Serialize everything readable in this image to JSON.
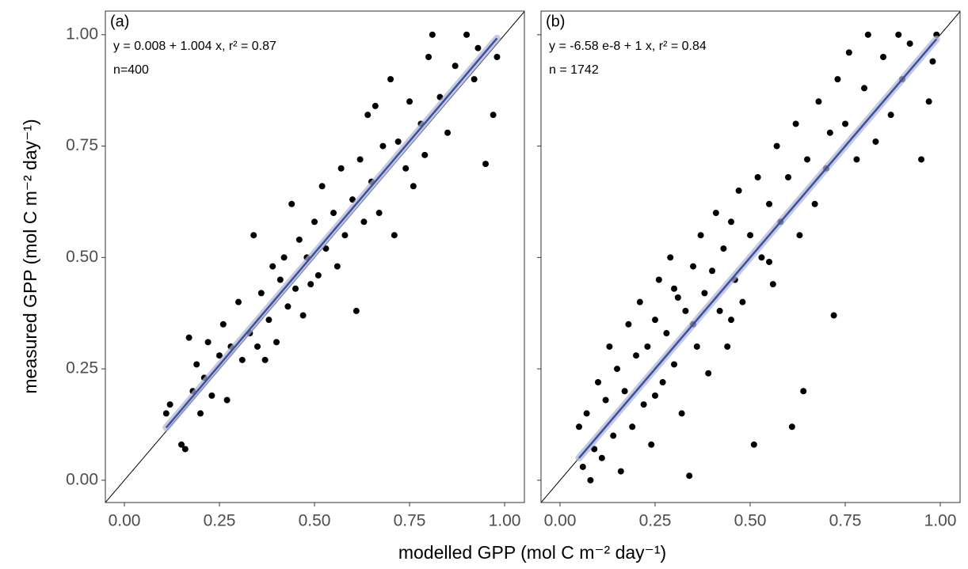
{
  "chart_data": [
    {
      "type": "scatter",
      "xlabel": "modelled GPP (mol C m⁻² day⁻¹)",
      "ylabel": "measured GPP (mol C m⁻² day⁻¹)",
      "annotations": [
        "(a)",
        "y = 0.008 + 1.004 x, r² = 0.87",
        "n=400"
      ],
      "color": "#000000",
      "identity_line": true,
      "ytick_labels": true,
      "x": [
        0.11,
        0.12,
        0.15,
        0.16,
        0.17,
        0.18,
        0.19,
        0.2,
        0.21,
        0.22,
        0.23,
        0.25,
        0.26,
        0.27,
        0.28,
        0.3,
        0.31,
        0.33,
        0.34,
        0.35,
        0.36,
        0.38,
        0.39,
        0.4,
        0.41,
        0.42,
        0.43,
        0.44,
        0.45,
        0.46,
        0.47,
        0.48,
        0.5,
        0.51,
        0.52,
        0.53,
        0.55,
        0.56,
        0.57,
        0.58,
        0.6,
        0.61,
        0.62,
        0.63,
        0.64,
        0.65,
        0.67,
        0.68,
        0.7,
        0.71,
        0.72,
        0.74,
        0.75,
        0.76,
        0.78,
        0.8,
        0.81,
        0.83,
        0.85,
        0.87,
        0.9,
        0.92,
        0.95,
        0.97,
        0.98,
        0.93,
        0.79,
        0.66,
        0.37,
        0.49
      ],
      "y": [
        0.15,
        0.17,
        0.08,
        0.07,
        0.32,
        0.2,
        0.26,
        0.15,
        0.23,
        0.31,
        0.19,
        0.28,
        0.35,
        0.18,
        0.3,
        0.4,
        0.27,
        0.33,
        0.55,
        0.3,
        0.42,
        0.36,
        0.48,
        0.31,
        0.45,
        0.5,
        0.39,
        0.62,
        0.43,
        0.54,
        0.37,
        0.5,
        0.58,
        0.46,
        0.66,
        0.52,
        0.6,
        0.48,
        0.7,
        0.55,
        0.63,
        0.38,
        0.72,
        0.58,
        0.82,
        0.67,
        0.6,
        0.75,
        0.9,
        0.55,
        0.76,
        0.7,
        0.85,
        0.66,
        0.8,
        0.95,
        1.0,
        0.86,
        0.78,
        0.93,
        1.0,
        0.9,
        0.71,
        0.82,
        0.95,
        0.97,
        0.73,
        0.84,
        0.27,
        0.44
      ],
      "fit": {
        "x": [
          0.11,
          0.98
        ],
        "y": [
          0.118,
          0.992
        ],
        "color": "#3d4f9e"
      },
      "xlim": [
        -0.05,
        1.052
      ],
      "ylim": [
        -0.05,
        1.053
      ],
      "xticks": [
        {
          "value": 0,
          "label": "0.00"
        },
        {
          "value": 0.25,
          "label": "0.25"
        },
        {
          "value": 0.5,
          "label": "0.50"
        },
        {
          "value": 0.75,
          "label": "0.75"
        },
        {
          "value": 1,
          "label": "1.00"
        }
      ],
      "yticks": [
        {
          "value": 0,
          "label": "0.00"
        },
        {
          "value": 0.25,
          "label": "0.25"
        },
        {
          "value": 0.5,
          "label": "0.50"
        },
        {
          "value": 0.75,
          "label": "0.75"
        },
        {
          "value": 1,
          "label": "1.00"
        }
      ]
    },
    {
      "type": "scatter",
      "annotations": [
        "(b)",
        "y = -6.58 e-8 + 1 x, r² = 0.84",
        "n = 1742"
      ],
      "color": "#000000",
      "identity_line": true,
      "ytick_labels": false,
      "x": [
        0.05,
        0.06,
        0.07,
        0.08,
        0.09,
        0.1,
        0.11,
        0.12,
        0.13,
        0.14,
        0.15,
        0.16,
        0.17,
        0.18,
        0.19,
        0.2,
        0.21,
        0.22,
        0.23,
        0.24,
        0.25,
        0.26,
        0.27,
        0.28,
        0.29,
        0.3,
        0.31,
        0.32,
        0.33,
        0.34,
        0.35,
        0.36,
        0.37,
        0.38,
        0.39,
        0.4,
        0.41,
        0.42,
        0.43,
        0.44,
        0.45,
        0.46,
        0.47,
        0.48,
        0.5,
        0.51,
        0.52,
        0.53,
        0.55,
        0.56,
        0.57,
        0.58,
        0.6,
        0.61,
        0.62,
        0.63,
        0.64,
        0.65,
        0.67,
        0.68,
        0.7,
        0.71,
        0.72,
        0.73,
        0.75,
        0.76,
        0.78,
        0.8,
        0.81,
        0.83,
        0.85,
        0.87,
        0.89,
        0.9,
        0.92,
        0.95,
        0.97,
        0.99,
        0.98,
        0.3,
        0.45,
        0.55,
        0.25,
        0.35
      ],
      "y": [
        0.12,
        0.03,
        0.15,
        0.0,
        0.07,
        0.22,
        0.05,
        0.18,
        0.3,
        0.1,
        0.25,
        0.02,
        0.2,
        0.35,
        0.12,
        0.28,
        0.4,
        0.17,
        0.3,
        0.08,
        0.36,
        0.45,
        0.22,
        0.33,
        0.5,
        0.26,
        0.41,
        0.15,
        0.38,
        0.01,
        0.48,
        0.3,
        0.55,
        0.42,
        0.24,
        0.47,
        0.6,
        0.38,
        0.52,
        0.3,
        0.58,
        0.45,
        0.65,
        0.4,
        0.55,
        0.08,
        0.68,
        0.5,
        0.62,
        0.44,
        0.75,
        0.58,
        0.68,
        0.12,
        0.8,
        0.55,
        0.2,
        0.72,
        0.62,
        0.85,
        0.7,
        0.78,
        0.37,
        0.9,
        0.8,
        0.96,
        0.72,
        0.88,
        1.0,
        0.76,
        0.95,
        0.82,
        1.0,
        0.9,
        0.98,
        0.72,
        0.85,
        1.0,
        0.94,
        0.43,
        0.36,
        0.49,
        0.19,
        0.35
      ],
      "fit": {
        "x": [
          0.05,
          0.99
        ],
        "y": [
          0.05,
          0.99
        ],
        "color": "#3d4f9e"
      },
      "xlim": [
        -0.05,
        1.052
      ],
      "ylim": [
        -0.05,
        1.053
      ],
      "xticks": [
        {
          "value": 0,
          "label": "0.00"
        },
        {
          "value": 0.25,
          "label": "0.25"
        },
        {
          "value": 0.5,
          "label": "0.50"
        },
        {
          "value": 0.75,
          "label": "0.75"
        },
        {
          "value": 1,
          "label": "1.00"
        }
      ],
      "yticks": [
        {
          "value": 0,
          "label": "0.00"
        },
        {
          "value": 0.25,
          "label": "0.25"
        },
        {
          "value": 0.5,
          "label": "0.50"
        },
        {
          "value": 0.75,
          "label": "0.75"
        },
        {
          "value": 1,
          "label": "1.00"
        }
      ]
    }
  ]
}
